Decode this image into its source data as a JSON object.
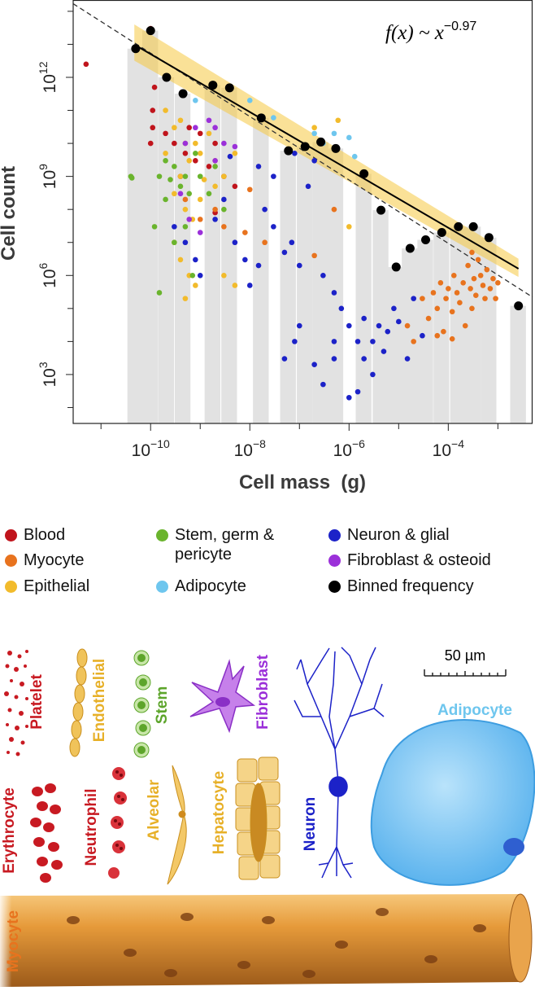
{
  "chart_data": {
    "type": "scatter",
    "xscale": "log",
    "yscale": "log",
    "x_label": "Cell mass  (g)",
    "y_label": "Cell count",
    "annotation": {
      "text": "f(x) ~ x",
      "exponent": "−0.97"
    },
    "xlim": [
      2.75e-12,
      0.005
    ],
    "ylim": [
      33,
      220000000000000.0
    ],
    "xticks": [
      {
        "value": 1e-10,
        "label": "10",
        "exponent": "−10"
      },
      {
        "value": 1e-08,
        "label": "10",
        "exponent": "−8"
      },
      {
        "value": 1e-06,
        "label": "10",
        "exponent": "−6"
      },
      {
        "value": 0.0001,
        "label": "10",
        "exponent": "−4"
      }
    ],
    "x_minor_ticks": [
      1e-11,
      1e-09,
      1e-07,
      1e-05,
      0.001
    ],
    "yticks": [
      {
        "value": 1000.0,
        "label": "10",
        "exponent": "3"
      },
      {
        "value": 1000000.0,
        "label": "10",
        "exponent": "6"
      },
      {
        "value": 1000000000.0,
        "label": "10",
        "exponent": "9"
      },
      {
        "value": 1000000000000.0,
        "label": "10",
        "exponent": "12"
      }
    ],
    "y_minor_ticks": [
      100.0,
      10000.0,
      100000.0,
      10000000.0,
      100000000.0,
      10000000000.0,
      100000000000.0,
      10000000000000.0,
      100000000000000.0
    ],
    "series": [
      {
        "name": "Blood",
        "color": "#c0141c",
        "x": [
          5e-12,
          1e-10,
          1.2e-10,
          1.1e-10,
          1.1e-10,
          1e-10,
          2e-10,
          3e-10,
          5e-10,
          8e-10,
          1.5e-09,
          3e-09,
          5e-09,
          2e-09,
          4e-10,
          1e-09,
          6e-10,
          2e-09
        ],
        "values": [
          2500000000000.0,
          30000000000000.0,
          500000000000.0,
          100000000000.0,
          30000000000.0,
          10000000000.0,
          20000000000.0,
          10000000000.0,
          5000000000.0,
          3000000000.0,
          2000000000.0,
          1000000000.0,
          500000000.0,
          80000000.0,
          1000000000.0,
          20000000000.0,
          30000000000.0,
          10000000000.0
        ]
      },
      {
        "name": "Myocyte",
        "color": "#e8731e",
        "x": [
          3e-05,
          4e-05,
          5e-05,
          6e-05,
          7e-05,
          8e-05,
          9e-05,
          0.0001,
          0.00012,
          0.00013,
          0.00015,
          0.00017,
          0.0002,
          0.00022,
          0.00025,
          0.00028,
          0.0003,
          0.00033,
          0.00036,
          0.0004,
          0.00045,
          0.0005,
          0.00055,
          0.0006,
          0.0007,
          0.0008,
          0.0009,
          0.001,
          0.00012,
          6e-05,
          2e-05,
          1.5e-05,
          0.0003,
          5e-10,
          1e-09,
          2e-09,
          3e-09,
          8e-09,
          2e-08,
          2e-07,
          5e-07,
          1e-08
        ],
        "values": [
          200000.0,
          50000.0,
          300000.0,
          100000.0,
          600000.0,
          20000.0,
          200000.0,
          400000.0,
          80000.0,
          1000000.0,
          300000.0,
          150000.0,
          600000.0,
          30000.0,
          2000000.0,
          400000.0,
          100000.0,
          800000.0,
          250000.0,
          3000000.0,
          1000000.0,
          500000.0,
          200000.0,
          1500000.0,
          400000.0,
          800000.0,
          200000.0,
          600000.0,
          12000.0,
          15000.0,
          10000.0,
          30000.0,
          5000000.0,
          200000000.0,
          50000000.0,
          100000000.0,
          30000000.0,
          20000000.0,
          10000000.0,
          4000000.0,
          100000000.0,
          400000000.0
        ]
      },
      {
        "name": "Epithelial",
        "color": "#f2bb2c",
        "x": [
          2e-10,
          3e-10,
          4e-10,
          5e-10,
          6e-10,
          8e-10,
          1e-09,
          1.5e-09,
          2e-09,
          3e-09,
          5e-09,
          4e-10,
          3e-10,
          5e-10,
          7e-10,
          1e-09,
          2e-09,
          3e-10,
          4e-10,
          6e-10,
          5e-10,
          8e-10,
          3e-09,
          5e-09,
          2e-10,
          1.2e-09,
          1e-06,
          6e-07,
          2e-07
        ],
        "values": [
          100000000000.0,
          30000000000.0,
          50000000000.0,
          10000000000.0,
          3000000000.0,
          10000000000.0,
          5000000000.0,
          20000000000.0,
          3000000000.0,
          1000000000.0,
          5000000000.0,
          1000000000.0,
          300000000.0,
          100000000.0,
          50000000.0,
          200000000.0,
          500000000.0,
          10000000.0,
          3000000.0,
          1000000.0,
          200000.0,
          500000.0,
          1000000.0,
          500000.0,
          5000000000.0,
          800000000.0,
          30000000.0,
          50000000000.0,
          30000000000.0
        ]
      },
      {
        "name": "Stem, germ & pericyte",
        "color": "#6ab42d",
        "x": [
          4e-11,
          4.2e-11,
          1.5e-10,
          2e-10,
          2.5e-10,
          3e-10,
          4e-10,
          5e-10,
          6e-10,
          8e-10,
          1e-09,
          1.5e-09,
          2e-09,
          3e-09,
          1.2e-10,
          1.5e-10,
          3e-10,
          2e-10,
          5e-10,
          7e-10
        ],
        "values": [
          1000000000.0,
          900000000.0,
          1000000000.0,
          3000000000.0,
          800000000.0,
          2000000000.0,
          500000000.0,
          1000000000.0,
          300000000.0,
          5000000000.0,
          1000000000.0,
          300000000.0,
          2000000000.0,
          100000000.0,
          30000000.0,
          300000.0,
          10000000.0,
          200000000.0,
          30000000.0,
          1000000.0
        ]
      },
      {
        "name": "Adipocyte",
        "color": "#6ec6ee",
        "x": [
          1e-08,
          3e-08,
          2e-07,
          3e-07,
          5e-07,
          1e-06,
          1.3e-06,
          8e-10
        ],
        "values": [
          200000000000.0,
          60000000000.0,
          20000000000.0,
          10000000000.0,
          20000000000.0,
          15000000000.0,
          4000000000.0,
          200000000000.0
        ]
      },
      {
        "name": "Neuron & glial",
        "color": "#1c22c8",
        "x": [
          3e-10,
          5e-10,
          8e-10,
          1e-09,
          2e-09,
          3e-09,
          5e-09,
          8e-09,
          1e-08,
          1.5e-08,
          2e-08,
          3e-08,
          5e-08,
          7e-08,
          1e-07,
          1.5e-07,
          2e-07,
          3e-07,
          5e-07,
          7e-07,
          1e-06,
          1.5e-06,
          2e-06,
          3e-06,
          4e-06,
          5e-06,
          6e-06,
          8e-06,
          1e-05,
          1.5e-05,
          2e-05,
          3e-05,
          1e-07,
          8e-08,
          5e-08,
          2e-07,
          3e-07,
          5e-07,
          1e-06,
          1.5e-06,
          3e-06,
          5e-07,
          2e-06,
          8e-08,
          1.5e-08,
          4e-09,
          3e-08
        ],
        "values": [
          30000000.0,
          10000000.0,
          3000000.0,
          1000000.0,
          50000000.0,
          200000000.0,
          10000000.0,
          3000000.0,
          500000.0,
          2000000.0,
          100000000.0,
          30000000.0,
          5000000.0,
          10000000.0,
          2000000.0,
          500000000.0,
          3000000000.0,
          1000000.0,
          300000.0,
          100000.0,
          30000.0,
          10000.0,
          3000.0,
          10000.0,
          30000.0,
          5000.0,
          20000.0,
          100000.0,
          40000.0,
          3000.0,
          200000.0,
          15000.0,
          30000.0,
          10000.0,
          3000.0,
          2000.0,
          500.0,
          3000.0,
          200.0,
          300.0,
          1000.0,
          10000.0,
          50000.0,
          5000000000.0,
          2000000000.0,
          4000000000.0,
          1000000000.0
        ]
      },
      {
        "name": "Fibroblast & osteoid",
        "color": "#9b30d9",
        "x": [
          5e-10,
          8e-10,
          1.5e-09,
          2e-09,
          3e-09,
          4e-10,
          6e-10,
          1e-09,
          2e-09,
          5e-09
        ],
        "values": [
          10000000000.0,
          30000000000.0,
          50000000000.0,
          30000000000.0,
          10000000000.0,
          300000000.0,
          50000000.0,
          20000000.0,
          3000000000.0,
          8000000000.0
        ]
      },
      {
        "name": "Binned frequency",
        "color": "#000000",
        "bars": true,
        "bar_color": "#e2e2e2",
        "x": [
          5e-11,
          1e-10,
          2.1e-10,
          4.5e-10,
          1.8e-09,
          3.9e-09,
          1.7e-08,
          6e-08,
          1.3e-07,
          2.7e-07,
          5.4e-07,
          2e-06,
          4.4e-06,
          8.9e-06,
          1.7e-05,
          3.5e-05,
          7.4e-05,
          0.00016,
          0.00032,
          0.00066,
          0.0026
        ],
        "values": [
          7400000000000.0,
          26000000000000.0,
          1000000000000.0,
          320000000000.0,
          580000000000.0,
          480000000000.0,
          59000000000.0,
          6000000000.0,
          8000000000.0,
          11000000000.0,
          7000000000.0,
          1200000000.0,
          95000000.0,
          1800000.0,
          6600000.0,
          12000000.0,
          20000000.0,
          30000000.0,
          30000000.0,
          14000000.0,
          120000.0
        ]
      }
    ],
    "fit_line": {
      "x": [
        4.7e-11,
        0.0026
      ],
      "y": [
        9800000000000.0,
        1600000.0
      ],
      "color": "#000000"
    },
    "reference_line": {
      "x": [
        2.75e-12,
        0.005
      ],
      "y": [
        170000000000000.0,
        220000.0
      ],
      "color": "#333333",
      "dashed": true
    },
    "confidence_band": {
      "x": [
        4.7e-11,
        0.0026
      ],
      "upper": [
        40000000000000.0,
        3200000.0
      ],
      "lower": [
        3200000000000.0,
        900000.0
      ],
      "color": "#f5c842"
    }
  },
  "illustrations": {
    "labels": [
      "Platelet",
      "Endothelial",
      "Stem",
      "Fibroblast",
      "Adipocyte",
      "Erythrocyte",
      "Neutrophil",
      "Alveolar",
      "Hepatocyte",
      "Neuron",
      "Myocyte"
    ],
    "scale_bar": "50 µm"
  }
}
